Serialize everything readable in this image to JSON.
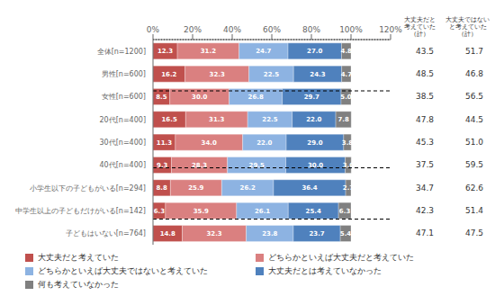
{
  "chart_data": {
    "type": "bar",
    "orientation": "horizontal",
    "stacked": true,
    "data_labels": true,
    "grid": false,
    "legend": "bottom",
    "categories": [
      "全体[n=1200]",
      "男性[n=600]",
      "女性[n=600]",
      "20代[n=400]",
      "30代[n=400]",
      "40代[n=400]",
      "小学生以下の子どもがいる[n=294]",
      "中学生以上の子どもだけがいる[n=142]",
      "子どもはいない[n=764]"
    ],
    "series": [
      {
        "name": "大丈夫だと考えていた",
        "color": "#c0504d",
        "values": [
          12.3,
          16.2,
          8.5,
          16.5,
          11.3,
          9.3,
          8.8,
          6.3,
          14.8
        ],
        "value_labels": [
          "12.3",
          "16.2",
          "8.5",
          "16.5",
          "11.3",
          "9.3",
          "8.8",
          "6.3",
          "14.8"
        ]
      },
      {
        "name": "どちらかといえば大丈夫だと考えていた",
        "color": "#da8080",
        "values": [
          31.2,
          32.3,
          30.0,
          31.3,
          34.0,
          28.3,
          25.9,
          35.9,
          32.3
        ],
        "value_labels": [
          "31.2",
          "32.3",
          "30.0",
          "31.3",
          "34.0",
          "28.3",
          "25.9",
          "35.9",
          "32.3"
        ]
      },
      {
        "name": "どちらかといえば大丈夫ではないと考えていた",
        "color": "#8db3e2",
        "values": [
          24.7,
          22.5,
          26.8,
          22.5,
          22.0,
          29.5,
          26.2,
          26.1,
          23.8
        ],
        "value_labels": [
          "24.7",
          "22.5",
          "26.8",
          "22.5",
          "22.0",
          "29.5",
          "26.2",
          "26.1",
          "23.8"
        ]
      },
      {
        "name": "大丈夫だとは考えていなかった",
        "color": "#4f81bd",
        "values": [
          27.0,
          24.3,
          29.7,
          22.0,
          29.0,
          30.0,
          36.4,
          25.4,
          23.7
        ],
        "value_labels": [
          "27.0",
          "24.3",
          "29.7",
          "22.0",
          "29.0",
          "30.0",
          "36.4",
          "25.4",
          "23.7"
        ]
      },
      {
        "name": "何も考えていなかった",
        "color": "#808080",
        "values": [
          4.8,
          4.7,
          5.0,
          7.8,
          3.8,
          3.0,
          2.7,
          6.3,
          5.4
        ],
        "value_labels": [
          "4.8",
          "4.7",
          "5.0",
          "7.8",
          "3.8",
          "3.0",
          "2.7",
          "6.3",
          "5.4"
        ]
      }
    ],
    "xlim": [
      0,
      120
    ],
    "xticks": [
      {
        "value": 0,
        "label": "0%"
      },
      {
        "value": 20,
        "label": "20%"
      },
      {
        "value": 40,
        "label": "40%"
      },
      {
        "value": 60,
        "label": "60%"
      },
      {
        "value": 80,
        "label": "80%"
      },
      {
        "value": 100,
        "label": "100%"
      },
      {
        "value": 120,
        "label": "120%"
      }
    ],
    "table": [
      {
        "name": "大丈夫だと\n考えていた\n（計）",
        "values": [
          43.5,
          48.5,
          38.5,
          47.8,
          45.3,
          37.5,
          34.7,
          42.3,
          47.1
        ],
        "value_labels": [
          "43.5",
          "48.5",
          "38.5",
          "47.8",
          "45.3",
          "37.5",
          "34.7",
          "42.3",
          "47.1"
        ]
      },
      {
        "name": "大丈夫ではない\nと考えていた\n（計）",
        "values": [
          51.7,
          46.8,
          56.5,
          44.5,
          51.0,
          59.5,
          62.6,
          51.4,
          47.5
        ],
        "value_labels": [
          "51.7",
          "46.8",
          "56.5",
          "44.5",
          "51.0",
          "59.5",
          "62.6",
          "51.4",
          "47.5"
        ]
      }
    ],
    "dashed_after": [
      0,
      2,
      5
    ],
    "dotted_after": [
      7
    ]
  }
}
